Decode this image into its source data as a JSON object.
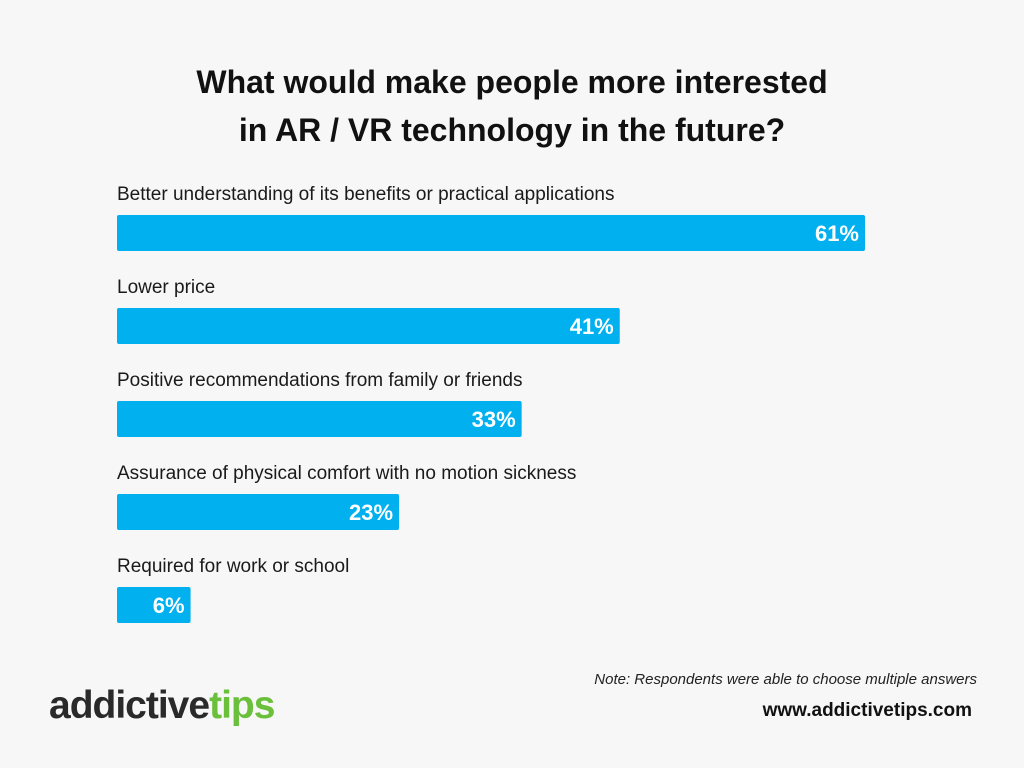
{
  "colors": {
    "bar": "#00b0ef",
    "label": "#1a1a1a",
    "value_text": "#ffffff",
    "logo_dark": "#2a2a2a",
    "logo_green": "#6abf3b"
  },
  "chart_data": {
    "type": "bar",
    "orientation": "horizontal",
    "title_lines": [
      "What would make people more interested",
      "in AR / VR technology in the future?"
    ],
    "categories": [
      "Better understanding of its benefits or practical applications",
      "Lower price",
      "Positive recommendations from family or friends",
      "Assurance of physical comfort with no motion sickness",
      "Required for work or school"
    ],
    "values": [
      61,
      41,
      33,
      23,
      6
    ],
    "value_labels": [
      "61%",
      "41%",
      "33%",
      "23%",
      "6%"
    ],
    "unit": "%",
    "xlim": [
      0,
      61
    ],
    "grid": false,
    "legend": "none"
  },
  "footer": {
    "note": "Note: Respondents were able to choose multiple answers",
    "logo_part1": "addictive",
    "logo_part2": "tips",
    "website": "www.addictivetips.com"
  }
}
